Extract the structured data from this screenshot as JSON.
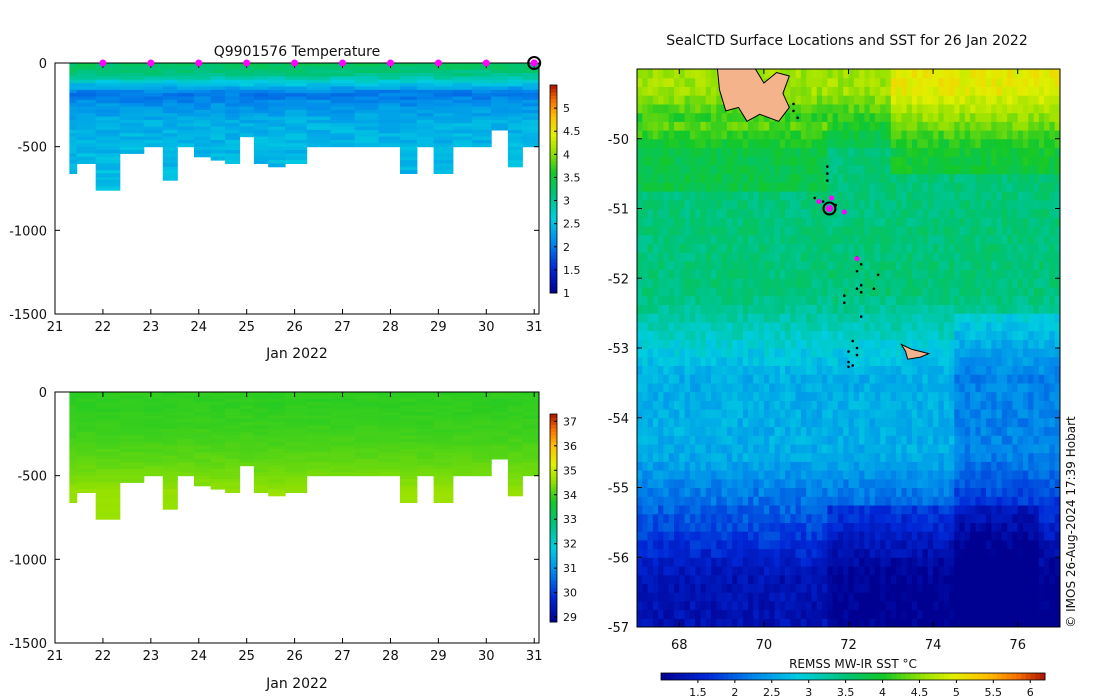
{
  "figure": {
    "left_title": "Q9901576  Temperature",
    "right_title": "SealCTD Surface Locations and SST for 26 Jan 2022",
    "credit": "© IMOS 26-Aug-2024 17:39 Hobart",
    "colors": {
      "profile_marker": "#ff00ff",
      "land": "#f4b38a",
      "axis": "#000000"
    }
  },
  "chart_data": [
    {
      "id": "temperature",
      "type": "heatmap",
      "title": "Q9901576  Temperature",
      "xlabel": "Jan 2022",
      "xlim": [
        21,
        31.1
      ],
      "ylim": [
        -1500,
        0
      ],
      "xticks": [
        21,
        22,
        23,
        24,
        25,
        26,
        27,
        28,
        29,
        30,
        31
      ],
      "yticks": [
        0,
        -500,
        -1000,
        -1500
      ],
      "colorbar": {
        "min": 1,
        "max": 5.5,
        "ticks": [
          1,
          1.5,
          2,
          2.5,
          3,
          3.5,
          4,
          4.5,
          5
        ]
      },
      "profile_days": [
        21.3,
        21.6,
        22.1,
        22.6,
        23.1,
        23.4,
        23.7,
        24.1,
        24.4,
        24.7,
        25.0,
        25.3,
        25.6,
        26.0,
        26.5,
        27.0,
        27.5,
        28.0,
        28.4,
        28.7,
        29.1,
        29.5,
        29.9,
        30.3,
        30.6,
        30.9
      ],
      "max_depths": [
        -660,
        -600,
        -760,
        -540,
        -500,
        -700,
        -500,
        -560,
        -570,
        -590,
        -440,
        -590,
        -610,
        -600,
        -500,
        -500,
        -500,
        -500,
        -650,
        -500,
        -650,
        -500,
        -500,
        -400,
        -620,
        -500
      ],
      "depth_temperature": [
        {
          "depth": 0,
          "temp": 3.3
        },
        {
          "depth": -60,
          "temp": 3.1
        },
        {
          "depth": -110,
          "temp": 2.6
        },
        {
          "depth": -170,
          "temp": 2.0
        },
        {
          "depth": -250,
          "temp": 2.2
        },
        {
          "depth": -350,
          "temp": 2.4
        },
        {
          "depth": -500,
          "temp": 2.45
        },
        {
          "depth": -800,
          "temp": 2.5
        }
      ],
      "surface_markers": [
        22,
        23,
        24,
        25,
        26,
        27,
        28,
        29,
        30,
        31
      ],
      "highlight_marker": 31
    },
    {
      "id": "salinity",
      "type": "heatmap",
      "title": "",
      "xlabel": "Jan 2022",
      "xlim": [
        21,
        31.1
      ],
      "ylim": [
        -1500,
        0
      ],
      "xticks": [
        21,
        22,
        23,
        24,
        25,
        26,
        27,
        28,
        29,
        30,
        31
      ],
      "yticks": [
        0,
        -500,
        -1000,
        -1500
      ],
      "colorbar": {
        "min": 28.8,
        "max": 37.3,
        "ticks": [
          29,
          30,
          31,
          32,
          33,
          34,
          35,
          36,
          37
        ]
      },
      "surface_value": 33.9,
      "deep_value": 34.6
    },
    {
      "id": "sst_map",
      "type": "heatmap",
      "title": "SealCTD Surface Locations and SST for 26 Jan 2022",
      "xlim": [
        67,
        77
      ],
      "ylim": [
        -57,
        -49.0
      ],
      "xticks": [
        68,
        70,
        72,
        74,
        76
      ],
      "yticks": [
        -50,
        -51,
        -52,
        -53,
        -54,
        -55,
        -56,
        -57
      ],
      "colorbar": {
        "label": "REMSS MW-IR SST °C",
        "min": 1.0,
        "max": 6.2,
        "ticks": [
          1.5,
          2,
          2.5,
          3,
          3.5,
          4,
          4.5,
          5,
          5.5,
          6
        ]
      },
      "seal_track": [
        {
          "lon": 70.7,
          "lat": -49.5
        },
        {
          "lon": 70.7,
          "lat": -49.6
        },
        {
          "lon": 70.8,
          "lat": -49.7
        },
        {
          "lon": 71.5,
          "lat": -50.4
        },
        {
          "lon": 71.5,
          "lat": -50.5
        },
        {
          "lon": 71.5,
          "lat": -50.6
        },
        {
          "lon": 71.2,
          "lat": -50.85
        },
        {
          "lon": 71.4,
          "lat": -50.9
        },
        {
          "lon": 71.7,
          "lat": -50.95
        },
        {
          "lon": 72.2,
          "lat": -51.7
        },
        {
          "lon": 72.3,
          "lat": -51.8
        },
        {
          "lon": 72.2,
          "lat": -51.9
        },
        {
          "lon": 72.7,
          "lat": -51.95
        },
        {
          "lon": 72.3,
          "lat": -52.1
        },
        {
          "lon": 72.2,
          "lat": -52.15
        },
        {
          "lon": 72.3,
          "lat": -52.2
        },
        {
          "lon": 72.6,
          "lat": -52.15
        },
        {
          "lon": 71.9,
          "lat": -52.25
        },
        {
          "lon": 71.9,
          "lat": -52.35
        },
        {
          "lon": 72.3,
          "lat": -52.55
        },
        {
          "lon": 72.1,
          "lat": -52.9
        },
        {
          "lon": 72.2,
          "lat": -53.0
        },
        {
          "lon": 72.0,
          "lat": -53.05
        },
        {
          "lon": 72.2,
          "lat": -53.1
        },
        {
          "lon": 72.0,
          "lat": -53.2
        },
        {
          "lon": 72.1,
          "lat": -53.25
        },
        {
          "lon": 72.0,
          "lat": -53.27
        }
      ],
      "highlight_profiles": [
        {
          "lon": 71.3,
          "lat": -50.9
        },
        {
          "lon": 71.6,
          "lat": -50.85
        },
        {
          "lon": 71.9,
          "lat": -51.05
        },
        {
          "lon": 72.2,
          "lat": -51.72
        }
      ],
      "current_location": {
        "lon": 71.55,
        "lat": -51.0
      },
      "kerguelen_outline": [
        [
          68.9,
          -49.0
        ],
        [
          69.8,
          -49.0
        ],
        [
          70.0,
          -49.2
        ],
        [
          70.3,
          -49.05
        ],
        [
          70.6,
          -49.1
        ],
        [
          70.45,
          -49.35
        ],
        [
          70.6,
          -49.55
        ],
        [
          70.35,
          -49.75
        ],
        [
          69.9,
          -49.65
        ],
        [
          69.6,
          -49.75
        ],
        [
          69.4,
          -49.55
        ],
        [
          69.1,
          -49.6
        ],
        [
          68.95,
          -49.3
        ]
      ],
      "heard_outline": [
        [
          73.25,
          -52.95
        ],
        [
          73.5,
          -53.02
        ],
        [
          73.9,
          -53.08
        ],
        [
          73.7,
          -53.13
        ],
        [
          73.4,
          -53.16
        ],
        [
          73.35,
          -53.05
        ]
      ]
    }
  ]
}
